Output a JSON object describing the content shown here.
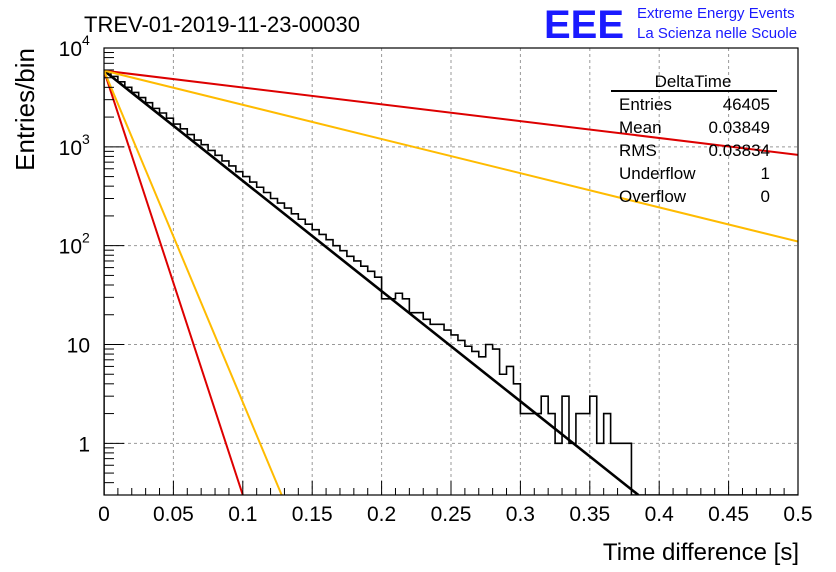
{
  "header": {
    "run_title": "TREV-01-2019-11-23-00030",
    "logo_text": "EEE",
    "logo_line1": "Extreme Energy Events",
    "logo_line2": "La Scienza nelle Scuole",
    "logo_color": "#1a1aff"
  },
  "stats": {
    "title": "DeltaTime",
    "rows": [
      {
        "label": "Entries",
        "value": "46405"
      },
      {
        "label": "Mean",
        "value": "0.03849"
      },
      {
        "label": "RMS",
        "value": "0.03834"
      },
      {
        "label": "Underflow",
        "value": "1"
      },
      {
        "label": "Overflow",
        "value": "0"
      }
    ]
  },
  "chart_data": {
    "type": "line",
    "title": "TREV-01-2019-11-23-00030",
    "xlabel": "Time difference [s]",
    "ylabel": "Entries/bin",
    "xlim": [
      0,
      0.5
    ],
    "ylim": [
      0.3,
      10000
    ],
    "y_scale": "log",
    "grid": true,
    "x_ticks": [
      "0",
      "0.05",
      "0.1",
      "0.15",
      "0.2",
      "0.25",
      "0.3",
      "0.35",
      "0.4",
      "0.45",
      "0.5"
    ],
    "y_ticks": [
      {
        "value": 1,
        "label": "1"
      },
      {
        "value": 10,
        "label": "10"
      },
      {
        "value": 100,
        "label": "10",
        "exp": "2"
      },
      {
        "value": 1000,
        "label": "10",
        "exp": "3"
      },
      {
        "value": 10000,
        "label": "10",
        "exp": "4"
      }
    ],
    "histogram": {
      "color": "#000000",
      "bin_width": 0.005,
      "values": [
        5800,
        5150,
        4550,
        4000,
        3550,
        3150,
        2800,
        2450,
        2200,
        1950,
        1700,
        1520,
        1330,
        1170,
        1050,
        920,
        820,
        720,
        640,
        560,
        500,
        440,
        390,
        345,
        300,
        270,
        240,
        210,
        185,
        165,
        145,
        130,
        115,
        100,
        89,
        78,
        70,
        62,
        55,
        48,
        43,
        38,
        33,
        29,
        26,
        23,
        20,
        18,
        16,
        14,
        12.5,
        11,
        9.6,
        8.5,
        7.5,
        6.6,
        5.8,
        5.2,
        4.6,
        4.1,
        3.6,
        3.2,
        2.8,
        2.5,
        2.2,
        1.9,
        1.7,
        1.5,
        1.3,
        1.2,
        1.0,
        0.9,
        0.8,
        0.7,
        0.6,
        0.55,
        0.5,
        0.45,
        0,
        0,
        0,
        0,
        0,
        0,
        0,
        0,
        0,
        0,
        0,
        0,
        0,
        0,
        0,
        0,
        0,
        0,
        0,
        0,
        0,
        0
      ],
      "note_overrides": {
        "40": 29,
        "41": 29,
        "44": 21,
        "45": 21,
        "46": 18,
        "47": 16,
        "48": 16,
        "55": 10,
        "56": 9,
        "57": 5,
        "58": 6,
        "59": 4,
        "60": 2,
        "61": 2,
        "62": 2,
        "63": 3,
        "64": 2,
        "65": 1,
        "66": 3,
        "67": 1,
        "68": 2,
        "69": 2,
        "70": 3,
        "71": 1,
        "72": 2,
        "73": 1,
        "74": 1,
        "75": 1,
        "76": 0.3,
        "77": 0.3,
        "78": 0.3,
        "79": 0.3,
        "80": 0.3,
        "81": 0.3,
        "82": 0.3,
        "83": 0.3,
        "84": 0.3,
        "85": 0.3,
        "86": 0.3,
        "87": 0.3,
        "88": 0.3,
        "89": 0.3,
        "90": 0.3,
        "91": 0.3,
        "92": 0.3,
        "93": 0.3,
        "94": 0.3,
        "95": 0.3,
        "96": 0.3,
        "97": 0.3,
        "98": 0.3,
        "99": 0.3
      }
    },
    "series": [
      {
        "color": "#000000",
        "x": [
          0.0,
          0.385
        ],
        "y": [
          5900,
          0.3
        ]
      },
      {
        "color": "#dd0000",
        "x": [
          0.0,
          0.5
        ],
        "y": [
          5900,
          830
        ]
      },
      {
        "color": "#ffbb00",
        "x": [
          0.0,
          0.5
        ],
        "y": [
          5900,
          110
        ]
      },
      {
        "color": "#dd0000",
        "x": [
          0.0,
          0.1
        ],
        "y": [
          5900,
          0.3
        ]
      },
      {
        "color": "#ffbb00",
        "x": [
          0.0,
          0.128
        ],
        "y": [
          5900,
          0.3
        ]
      }
    ]
  }
}
